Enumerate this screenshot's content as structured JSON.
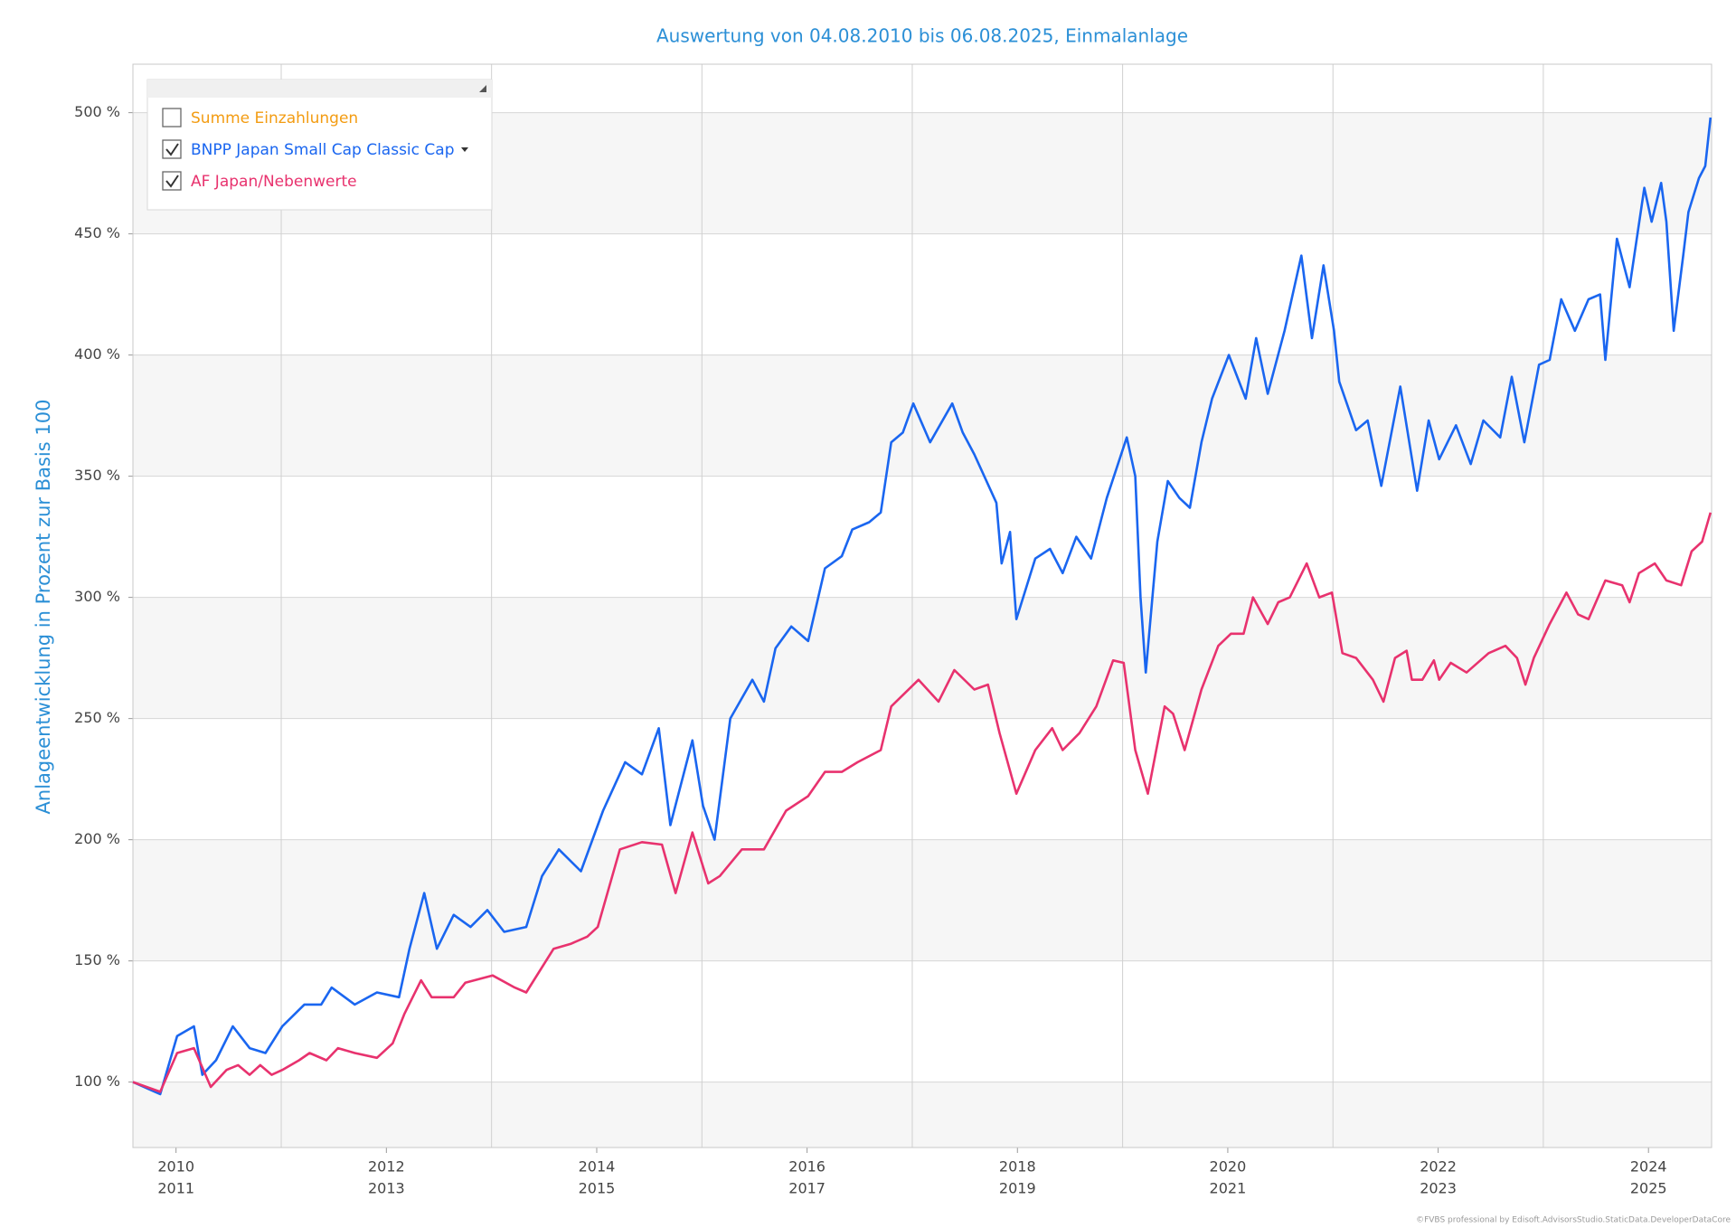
{
  "chart_data": {
    "type": "line",
    "title": "Auswertung von 04.08.2010 bis 06.08.2025, Einmalanlage",
    "y_label": "Anlageentwicklung  in Prozent zur Basis 100",
    "footer": "©FVBS professional by Edisoft.AdvisorsStudio.StaticData.DeveloperDataCore",
    "xlim": [
      2010.59,
      2025.6
    ],
    "ylim": [
      73,
      520
    ],
    "yticks": [
      {
        "value": 100,
        "label": "100 %"
      },
      {
        "value": 150,
        "label": "150 %"
      },
      {
        "value": 200,
        "label": "200 %"
      },
      {
        "value": 250,
        "label": "250 %"
      },
      {
        "value": 300,
        "label": "300 %"
      },
      {
        "value": 350,
        "label": "350 %"
      },
      {
        "value": 400,
        "label": "400 %"
      },
      {
        "value": 450,
        "label": "450 %"
      },
      {
        "value": 500,
        "label": "500 %"
      }
    ],
    "xticks": [
      {
        "value": 2011,
        "label": "2010",
        "label2": "2011"
      },
      {
        "value": 2013,
        "label": "2012",
        "label2": "2013"
      },
      {
        "value": 2015,
        "label": "2014",
        "label2": "2015"
      },
      {
        "value": 2017,
        "label": "2016",
        "label2": "2017"
      },
      {
        "value": 2019,
        "label": "2018",
        "label2": "2019"
      },
      {
        "value": 2021,
        "label": "2020",
        "label2": "2021"
      },
      {
        "value": 2023,
        "label": "2022",
        "label2": "2023"
      },
      {
        "value": 2025,
        "label": "2024",
        "label2": "2025"
      }
    ],
    "xgrid": [
      2012,
      2014,
      2016,
      2018,
      2020,
      2022,
      2024
    ],
    "grid": true,
    "legend": "top-left",
    "series": [
      {
        "name": "Summe Einzahlungen",
        "color": "#f39c12",
        "visible": false,
        "x": [],
        "values": []
      },
      {
        "name": "BNPP Japan Small Cap Classic Cap",
        "color": "#1a66f0",
        "visible": true,
        "x": [
          2010.59,
          2010.8,
          2010.85,
          2011.01,
          2011.17,
          2011.25,
          2011.38,
          2011.54,
          2011.7,
          2011.85,
          2012.01,
          2012.22,
          2012.38,
          2012.48,
          2012.7,
          2012.91,
          2013.12,
          2013.22,
          2013.36,
          2013.48,
          2013.64,
          2013.8,
          2013.96,
          2014.12,
          2014.33,
          2014.48,
          2014.64,
          2014.85,
          2015.06,
          2015.27,
          2015.43,
          2015.59,
          2015.7,
          2015.91,
          2016.01,
          2016.12,
          2016.27,
          2016.48,
          2016.59,
          2016.7,
          2016.85,
          2017.01,
          2017.17,
          2017.33,
          2017.43,
          2017.59,
          2017.7,
          2017.8,
          2017.91,
          2018.01,
          2018.17,
          2018.38,
          2018.48,
          2018.59,
          2018.8,
          2018.85,
          2018.93,
          2018.99,
          2019.17,
          2019.31,
          2019.43,
          2019.56,
          2019.7,
          2019.85,
          2020.04,
          2020.12,
          2020.17,
          2020.22,
          2020.33,
          2020.43,
          2020.54,
          2020.64,
          2020.75,
          2020.85,
          2021.01,
          2021.17,
          2021.27,
          2021.38,
          2021.54,
          2021.7,
          2021.8,
          2021.91,
          2022.01,
          2022.06,
          2022.22,
          2022.33,
          2022.46,
          2022.64,
          2022.8,
          2022.91,
          2023.01,
          2023.17,
          2023.31,
          2023.43,
          2023.59,
          2023.7,
          2023.82,
          2023.96,
          2024.06,
          2024.17,
          2024.3,
          2024.43,
          2024.54,
          2024.59,
          2024.7,
          2024.82,
          2024.96,
          2025.03,
          2025.12,
          2025.17,
          2025.24,
          2025.33,
          2025.38,
          2025.48,
          2025.54,
          2025.59
        ],
        "values": [
          100,
          96,
          95,
          119,
          123,
          103,
          109,
          123,
          114,
          112,
          123,
          132,
          132,
          139,
          132,
          137,
          135,
          155,
          178,
          155,
          169,
          164,
          171,
          162,
          164,
          185,
          196,
          187,
          212,
          232,
          227,
          246,
          206,
          241,
          214,
          200,
          250,
          266,
          257,
          279,
          288,
          282,
          312,
          317,
          328,
          331,
          335,
          364,
          368,
          380,
          364,
          380,
          368,
          359,
          339,
          314,
          327,
          291,
          316,
          320,
          310,
          325,
          316,
          341,
          366,
          350,
          300,
          269,
          323,
          348,
          341,
          337,
          364,
          382,
          400,
          382,
          407,
          384,
          410,
          441,
          407,
          437,
          410,
          389,
          369,
          373,
          346,
          387,
          344,
          373,
          357,
          371,
          355,
          373,
          366,
          391,
          364,
          396,
          398,
          423,
          410,
          423,
          425,
          398,
          448,
          428,
          469,
          455,
          471,
          455,
          410,
          441,
          459,
          473,
          478,
          498
        ]
      },
      {
        "name": "AF Japan/Nebenwerte",
        "color": "#e8326e",
        "visible": true,
        "x": [
          2010.59,
          2010.85,
          2011.01,
          2011.17,
          2011.33,
          2011.48,
          2011.59,
          2011.7,
          2011.8,
          2011.91,
          2012.01,
          2012.17,
          2012.27,
          2012.43,
          2012.54,
          2012.7,
          2012.91,
          2013.06,
          2013.17,
          2013.33,
          2013.43,
          2013.64,
          2013.75,
          2014.01,
          2014.22,
          2014.33,
          2014.59,
          2014.75,
          2014.91,
          2015.01,
          2015.22,
          2015.43,
          2015.62,
          2015.75,
          2015.91,
          2016.06,
          2016.17,
          2016.38,
          2016.59,
          2016.8,
          2017.01,
          2017.17,
          2017.33,
          2017.48,
          2017.7,
          2017.8,
          2018.06,
          2018.25,
          2018.4,
          2018.59,
          2018.72,
          2018.83,
          2018.99,
          2019.17,
          2019.33,
          2019.43,
          2019.59,
          2019.75,
          2019.91,
          2020.01,
          2020.12,
          2020.24,
          2020.4,
          2020.48,
          2020.59,
          2020.75,
          2020.91,
          2021.03,
          2021.15,
          2021.24,
          2021.38,
          2021.48,
          2021.59,
          2021.75,
          2021.87,
          2021.99,
          2022.09,
          2022.22,
          2022.38,
          2022.48,
          2022.59,
          2022.7,
          2022.75,
          2022.85,
          2022.96,
          2023.01,
          2023.12,
          2023.27,
          2023.48,
          2023.64,
          2023.75,
          2023.83,
          2023.91,
          2024.06,
          2024.22,
          2024.33,
          2024.43,
          2024.59,
          2024.75,
          2024.82,
          2024.91,
          2025.06,
          2025.17,
          2025.31,
          2025.41,
          2025.51,
          2025.59
        ],
        "values": [
          100,
          96,
          112,
          114,
          98,
          105,
          107,
          103,
          107,
          103,
          105,
          109,
          112,
          109,
          114,
          112,
          110,
          116,
          128,
          142,
          135,
          135,
          141,
          144,
          139,
          137,
          155,
          157,
          160,
          164,
          196,
          199,
          198,
          178,
          203,
          182,
          185,
          196,
          196,
          212,
          218,
          228,
          228,
          232,
          237,
          255,
          266,
          257,
          270,
          262,
          264,
          244,
          219,
          237,
          246,
          237,
          244,
          255,
          274,
          273,
          237,
          219,
          255,
          252,
          237,
          262,
          280,
          285,
          285,
          300,
          289,
          298,
          300,
          314,
          300,
          302,
          277,
          275,
          266,
          257,
          275,
          278,
          266,
          266,
          274,
          266,
          273,
          269,
          277,
          280,
          275,
          264,
          275,
          289,
          302,
          293,
          291,
          307,
          305,
          298,
          310,
          314,
          307,
          305,
          319,
          323,
          335
        ]
      }
    ]
  }
}
